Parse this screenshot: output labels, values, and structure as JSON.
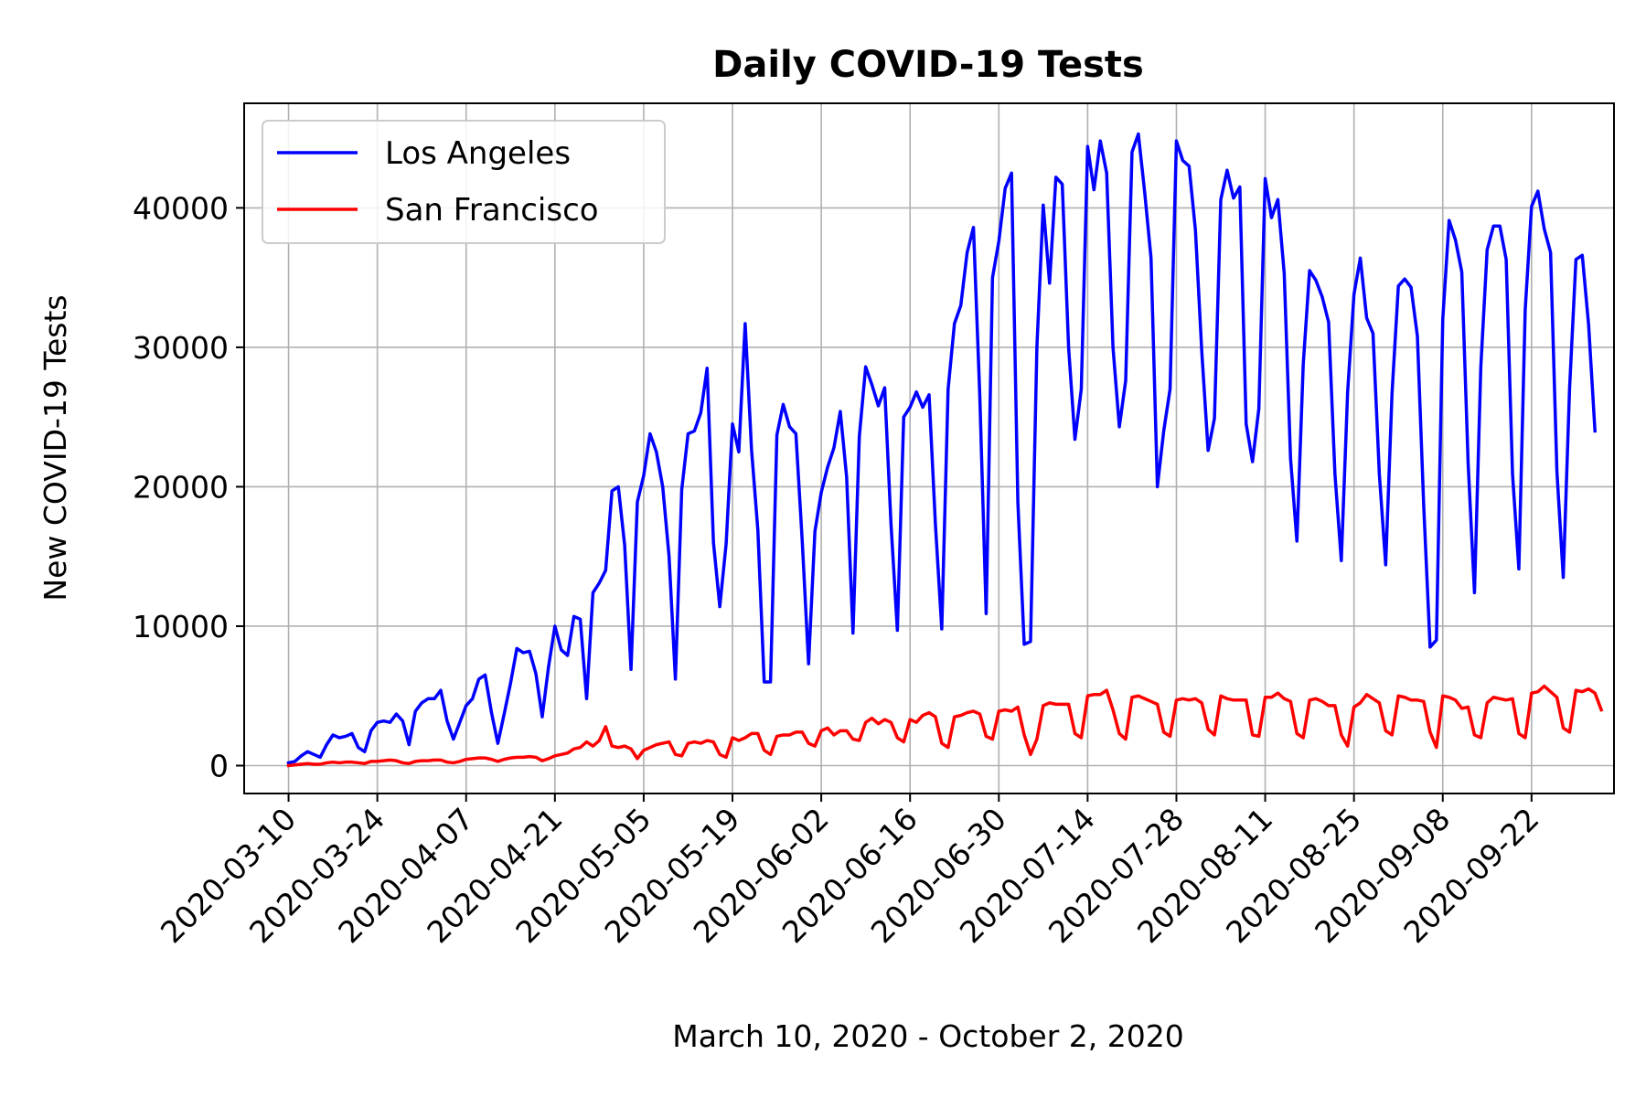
{
  "chart_data": {
    "type": "line",
    "title": "Daily COVID-19 Tests",
    "xlabel": "March 10, 2020 - October 2, 2020",
    "ylabel": "New COVID-19 Tests",
    "x_start": "2020-03-10",
    "x_end": "2020-09-24",
    "xlim": [
      "2020-03-03",
      "2020-10-05"
    ],
    "ylim": [
      -2000,
      47500
    ],
    "x_ticks": [
      "2020-03-10",
      "2020-03-24",
      "2020-04-07",
      "2020-04-21",
      "2020-05-05",
      "2020-05-19",
      "2020-06-02",
      "2020-06-16",
      "2020-06-30",
      "2020-07-14",
      "2020-07-28",
      "2020-08-11",
      "2020-08-25",
      "2020-09-08",
      "2020-09-22"
    ],
    "y_ticks": [
      0,
      10000,
      20000,
      30000,
      40000
    ],
    "y_tick_labels": [
      "0",
      "10000",
      "20000",
      "30000",
      "40000"
    ],
    "grid": true,
    "legend_position": "top-left",
    "series": [
      {
        "name": "Los Angeles",
        "color": "#0000ff",
        "values": [
          200,
          300,
          700,
          1000,
          800,
          600,
          1500,
          2200,
          2000,
          2100,
          2300,
          1300,
          1000,
          2500,
          3100,
          3200,
          3100,
          3700,
          3200,
          1500,
          3900,
          4500,
          4800,
          4800,
          5400,
          3200,
          1900,
          3100,
          4300,
          4800,
          6200,
          6500,
          3800,
          1600,
          3700,
          5900,
          8400,
          8100,
          8200,
          6600,
          3500,
          7100,
          10000,
          8300,
          7900,
          10700,
          10500,
          4800,
          12400,
          13100,
          14000,
          19700,
          20000,
          15800,
          6900,
          18900,
          20800,
          23800,
          22500,
          20000,
          15000,
          6200,
          19800,
          23800,
          24000,
          25300,
          28500,
          16000,
          11400,
          15900,
          24500,
          22500,
          31700,
          22700,
          16900,
          6000,
          6000,
          23700,
          25900,
          24300,
          23800,
          16100,
          7300,
          16800,
          19600,
          21400,
          22800,
          25400,
          20700,
          9500,
          23600,
          28600,
          27300,
          25800,
          27100,
          17300,
          9700,
          25000,
          25700,
          26800,
          25700,
          26600,
          17300,
          9800,
          27000,
          31700,
          33000,
          36800,
          38600,
          26500,
          10900,
          35000,
          37600,
          41400,
          42500,
          18900,
          8700,
          8900,
          30000,
          40200,
          34600,
          42200,
          41700,
          30000,
          23400,
          27000,
          44400,
          41300,
          44800,
          42500,
          30000,
          24300,
          27600,
          44000,
          45300,
          41100,
          36400,
          20000,
          24000,
          27000,
          44800,
          43400,
          43000,
          38400,
          29700,
          22600,
          24900,
          40600,
          42700,
          40700,
          41500,
          24500,
          21800,
          25600,
          42100,
          39300,
          40600,
          35300,
          22000,
          16100,
          28800,
          35500,
          34800,
          33600,
          31800,
          20900,
          14700,
          26800,
          33800,
          36400,
          32100,
          31000,
          20900,
          14400,
          26700,
          34400,
          34900,
          34300,
          30800,
          18600,
          8500,
          9000,
          32000,
          39100,
          37700,
          35400,
          21700,
          12400,
          28600,
          37000,
          38700,
          38700,
          36300,
          20900,
          14100,
          32700,
          40100,
          41200,
          38500,
          36800,
          21100,
          13500,
          27100,
          36300,
          36600,
          31600,
          24000
        ]
      },
      {
        "name": "San Francisco",
        "color": "#ff0000",
        "values": [
          0,
          50,
          100,
          150,
          100,
          100,
          200,
          250,
          200,
          250,
          250,
          200,
          150,
          300,
          300,
          350,
          400,
          350,
          200,
          150,
          300,
          350,
          350,
          400,
          400,
          250,
          200,
          300,
          450,
          500,
          550,
          550,
          450,
          300,
          450,
          550,
          600,
          600,
          650,
          600,
          350,
          500,
          700,
          800,
          900,
          1200,
          1300,
          1700,
          1400,
          1800,
          2800,
          1400,
          1300,
          1400,
          1200,
          500,
          1100,
          1300,
          1500,
          1600,
          1700,
          800,
          700,
          1600,
          1700,
          1600,
          1800,
          1700,
          800,
          600,
          2000,
          1800,
          2000,
          2300,
          2300,
          1100,
          800,
          2100,
          2200,
          2200,
          2400,
          2400,
          1600,
          1400,
          2500,
          2700,
          2200,
          2500,
          2500,
          1900,
          1800,
          3100,
          3400,
          3000,
          3300,
          3100,
          2000,
          1700,
          3300,
          3100,
          3600,
          3800,
          3500,
          1600,
          1300,
          3500,
          3600,
          3800,
          3900,
          3700,
          2100,
          1900,
          3900,
          4000,
          3900,
          4200,
          2200,
          800,
          1900,
          4300,
          4500,
          4400,
          4400,
          4400,
          2300,
          2000,
          5000,
          5100,
          5100,
          5400,
          4000,
          2300,
          1900,
          4900,
          5000,
          4800,
          4600,
          4400,
          2400,
          2100,
          4700,
          4800,
          4700,
          4800,
          4500,
          2600,
          2200,
          5000,
          4800,
          4700,
          4700,
          4700,
          2200,
          2100,
          4900,
          4900,
          5200,
          4800,
          4600,
          2300,
          2000,
          4700,
          4800,
          4600,
          4300,
          4300,
          2200,
          1400,
          4200,
          4500,
          5100,
          4800,
          4500,
          2500,
          2200,
          5000,
          4900,
          4700,
          4700,
          4600,
          2400,
          1300,
          5000,
          4900,
          4700,
          4100,
          4200,
          2200,
          2000,
          4500,
          4900,
          4800,
          4700,
          4800,
          2300,
          2000,
          5200,
          5300,
          5700,
          5300,
          4900,
          2700,
          2400,
          5400,
          5300,
          5500,
          5200,
          4000
        ]
      }
    ]
  }
}
